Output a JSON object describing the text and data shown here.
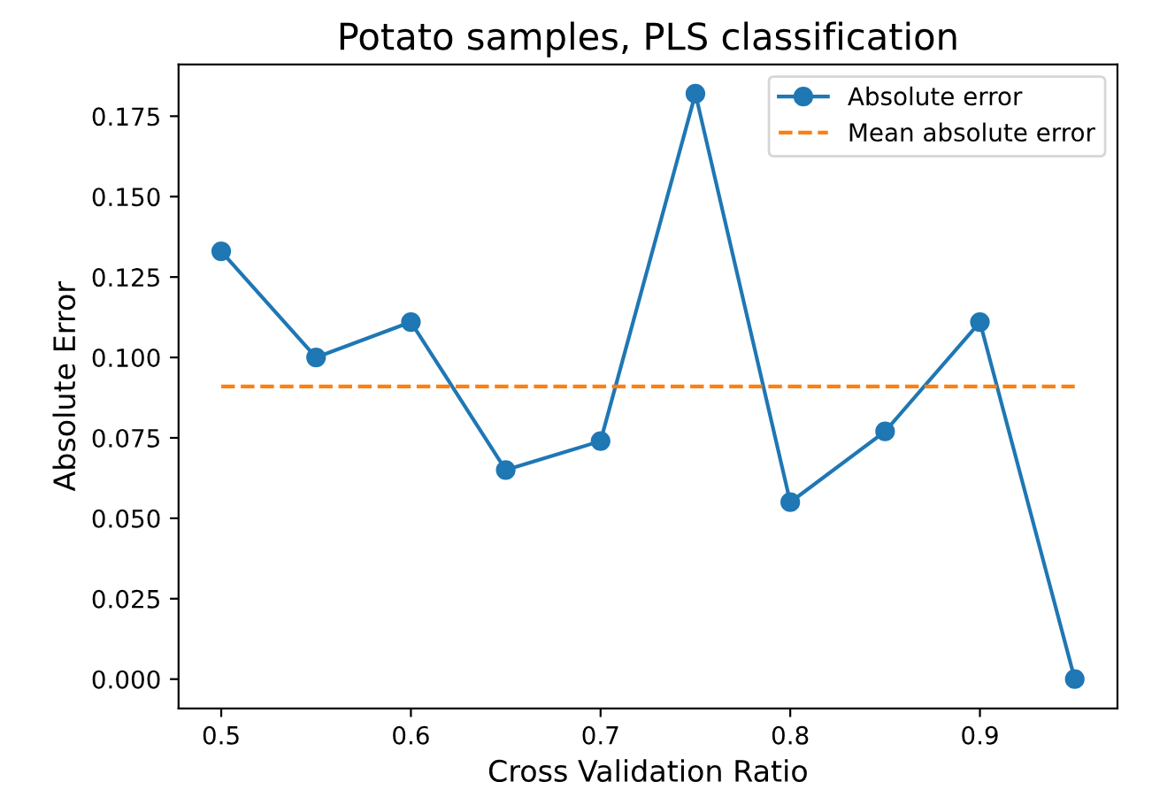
{
  "chart_data": {
    "type": "line",
    "title": "Potato samples, PLS classification",
    "xlabel": "Cross Validation Ratio",
    "ylabel": "Absolute Error",
    "series": [
      {
        "name": "Absolute error",
        "color": "#1f77b4",
        "marker": "circle",
        "line_style": "solid",
        "x": [
          0.5,
          0.55,
          0.6,
          0.65,
          0.7,
          0.75,
          0.8,
          0.85,
          0.9,
          0.95
        ],
        "values": [
          0.133,
          0.1,
          0.111,
          0.065,
          0.074,
          0.182,
          0.055,
          0.077,
          0.111,
          0.0
        ]
      },
      {
        "name": "Mean absolute error",
        "color": "#ff7f0e",
        "marker": "none",
        "line_style": "dashed",
        "x": [
          0.5,
          0.95
        ],
        "values": [
          0.091,
          0.091
        ]
      }
    ],
    "xlim": [
      0.4775,
      0.9725
    ],
    "ylim": [
      -0.0091,
      0.1911
    ],
    "xticks": [
      0.5,
      0.6,
      0.7,
      0.8,
      0.9
    ],
    "yticks": [
      {
        "value": 0,
        "label": "0.000"
      },
      {
        "value": 0.025,
        "label": "0.025"
      },
      {
        "value": 0.05,
        "label": "0.050"
      },
      {
        "value": 0.075,
        "label": "0.075"
      },
      {
        "value": 0.1,
        "label": "0.100"
      },
      {
        "value": 0.125,
        "label": "0.125"
      },
      {
        "value": 0.15,
        "label": "0.150"
      },
      {
        "value": 0.175,
        "label": "0.175"
      }
    ],
    "grid": false,
    "legend": "top right"
  }
}
